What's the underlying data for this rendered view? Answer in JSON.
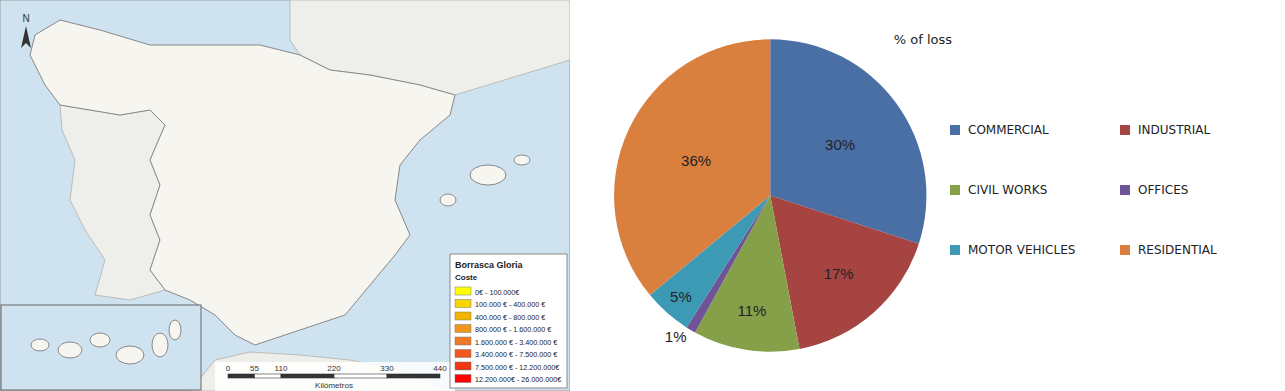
{
  "chart_data": [
    {
      "type": "map",
      "title": "Borrasca Gloria",
      "legend_title": "Coste",
      "legend": "bottom right",
      "categories": [
        "0€ - 100.000€",
        "100.000 € - 400.000 €",
        "400.000 € - 800.000 €",
        "800.000 € - 1.600.000 €",
        "1.600.000 € - 3.400.000 €",
        "3.400.000 € - 7.500.000 €",
        "7.500.000 € - 12.200.000€",
        "12.200.000€ - 26.000.000€"
      ],
      "colors": [
        "#ffff00",
        "#f7d600",
        "#f2b400",
        "#f0961e",
        "#f07828",
        "#f0561e",
        "#f03814",
        "#ff0000"
      ],
      "scale_ticks": [
        0,
        55,
        110,
        220,
        330,
        440
      ],
      "scale_label": "Kilómetros",
      "north_label": "N"
    },
    {
      "type": "pie",
      "title": "% of loss",
      "legend": "right",
      "data_labels": true,
      "categories": [
        "COMMERCIAL",
        "INDUSTRIAL",
        "CIVIL WORKS",
        "OFFICES",
        "MOTOR VEHICLES",
        "RESIDENTIAL"
      ],
      "values": [
        30,
        17,
        11,
        1,
        5,
        36
      ],
      "value_labels": [
        "30%",
        "17%",
        "11%",
        "1%",
        "5%",
        "36%"
      ],
      "colors": [
        "#4a6fa5",
        "#a64442",
        "#86a04a",
        "#6e5496",
        "#3d9ab5",
        "#d9803e"
      ]
    }
  ]
}
